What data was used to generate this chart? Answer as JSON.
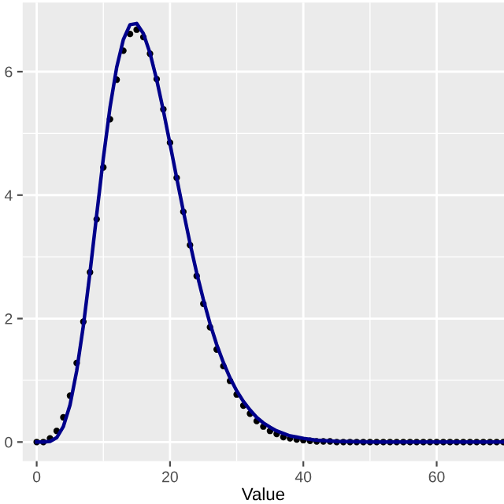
{
  "chart_data": {
    "type": "scatter",
    "xlabel": "Value",
    "xlim": [
      -2.1,
      70.1
    ],
    "ylim": [
      -0.31,
      7.12
    ],
    "xticks": [
      0,
      20,
      40,
      60
    ],
    "yticks": [
      0,
      2,
      4,
      6
    ],
    "grid": true,
    "legend": false,
    "series": [
      {
        "color": "#000000",
        "marker": "circle",
        "x": [
          0,
          1,
          2,
          3,
          4,
          5,
          6,
          7,
          8,
          9,
          10,
          11,
          12,
          13,
          14,
          15,
          16,
          17,
          18,
          19,
          20,
          21,
          22,
          23,
          24,
          25,
          26,
          27,
          28,
          29,
          30,
          31,
          32,
          33,
          34,
          35,
          36,
          37,
          38,
          39,
          40,
          41,
          42,
          43,
          44,
          45,
          46,
          47,
          48,
          49,
          50,
          51,
          52,
          53,
          54,
          55,
          56,
          57,
          58,
          59,
          60,
          61,
          62,
          63,
          64,
          65,
          66,
          67,
          68,
          69,
          70
        ],
        "values": [
          0,
          0,
          0.06,
          0.18,
          0.4,
          0.75,
          1.28,
          1.95,
          2.75,
          3.61,
          4.45,
          5.23,
          5.87,
          6.34,
          6.61,
          6.68,
          6.56,
          6.29,
          5.88,
          5.39,
          4.85,
          4.28,
          3.73,
          3.19,
          2.69,
          2.24,
          1.86,
          1.5,
          1.23,
          0.99,
          0.77,
          0.59,
          0.46,
          0.34,
          0.25,
          0.18,
          0.13,
          0.08,
          0.06,
          0.04,
          0.03,
          0.02,
          0.01,
          0.01,
          0.01,
          0,
          0,
          0,
          0,
          0,
          0,
          0,
          0,
          0,
          0,
          0,
          0,
          0,
          0,
          0,
          0,
          0,
          0,
          0,
          0,
          0,
          0,
          0,
          0,
          0,
          0
        ]
      },
      {
        "type": "line",
        "color": "#00008b",
        "line_style": "solid",
        "x": [
          0,
          1,
          2,
          3,
          4,
          5,
          6,
          7,
          8,
          9,
          10,
          11,
          12,
          13,
          14,
          15,
          16,
          17,
          18,
          19,
          20,
          21,
          22,
          23,
          24,
          25,
          26,
          27,
          28,
          29,
          30,
          31,
          32,
          33,
          34,
          35,
          36,
          37,
          38,
          39,
          40,
          42,
          45,
          50,
          60,
          70
        ],
        "values": [
          0,
          0,
          0.01,
          0.07,
          0.25,
          0.6,
          1.15,
          1.88,
          2.75,
          3.68,
          4.6,
          5.42,
          6.07,
          6.52,
          6.76,
          6.78,
          6.62,
          6.3,
          5.87,
          5.37,
          4.83,
          4.28,
          3.74,
          3.22,
          2.74,
          2.31,
          1.92,
          1.58,
          1.29,
          1.04,
          0.83,
          0.66,
          0.52,
          0.4,
          0.31,
          0.24,
          0.18,
          0.14,
          0.1,
          0.08,
          0.06,
          0.03,
          0.01,
          0,
          0,
          0
        ]
      }
    ]
  }
}
